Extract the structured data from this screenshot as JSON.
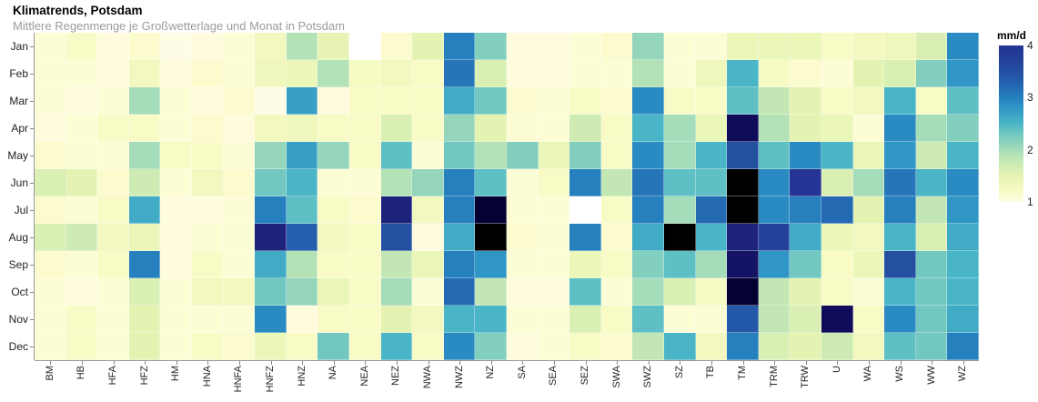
{
  "header": {
    "title": "Klimatrends, Potsdam",
    "subtitle": "Mittlere Regenmenge je Großwetterlage und Monat in Potsdam"
  },
  "legend": {
    "title": "mm/d",
    "ticks": [
      4,
      3,
      2,
      1
    ],
    "min": 1,
    "max": 4
  },
  "colors": {
    "missing": "#ffffff",
    "axis": "#999999",
    "tick": "#888888",
    "subtitle_text": "#9b9b9b",
    "label_text": "#222222",
    "colormap_anchors": [
      [
        1.0,
        "#fffce5"
      ],
      [
        1.2,
        "#f9fbc6"
      ],
      [
        1.5,
        "#e4f3b2"
      ],
      [
        1.8,
        "#c3e7b4"
      ],
      [
        2.0,
        "#a5dcb9"
      ],
      [
        2.3,
        "#72c8c1"
      ],
      [
        2.5,
        "#4ab5c6"
      ],
      [
        2.8,
        "#2f96c6"
      ],
      [
        3.0,
        "#2580bd"
      ],
      [
        3.3,
        "#245fae"
      ],
      [
        3.5,
        "#2450a2"
      ],
      [
        3.8,
        "#223c96"
      ],
      [
        4.0,
        "#253494"
      ],
      [
        4.15,
        "#191a6e"
      ],
      [
        4.3,
        "#0c054e"
      ],
      [
        4.45,
        "#050233"
      ],
      [
        4.7,
        "#000000"
      ]
    ]
  },
  "chart_data": {
    "type": "heatmap",
    "title": "Klimatrends, Potsdam",
    "subtitle": "Mittlere Regenmenge je Großwetterlage und Monat in Potsdam",
    "unit": "mm/d",
    "legend_range": [
      1,
      4
    ],
    "x_categories": [
      "BM",
      "HB",
      "HFA",
      "HFZ",
      "HM",
      "HNA",
      "HNFA",
      "HNFZ",
      "HNZ",
      "NA",
      "NEA",
      "NEZ",
      "NWA",
      "NWZ",
      "NZ",
      "SA",
      "SEA",
      "SEZ",
      "SWA",
      "SWZ",
      "SZ",
      "TB",
      "TM",
      "TRM",
      "TRW",
      "U",
      "WA",
      "WS",
      "WW",
      "WZ"
    ],
    "y_categories": [
      "Jan",
      "Feb",
      "Mar",
      "Apr",
      "May",
      "Jun",
      "Jul",
      "Aug",
      "Sep",
      "Oct",
      "Nov",
      "Dec"
    ],
    "values": [
      [
        1.1,
        1.2,
        1.05,
        1.15,
        1.0,
        1.05,
        1.1,
        1.3,
        1.9,
        1.45,
        null,
        1.15,
        1.5,
        3.0,
        2.2,
        1.05,
        1.05,
        1.1,
        1.15,
        2.1,
        1.1,
        1.1,
        1.4,
        1.4,
        1.4,
        1.2,
        1.3,
        1.35,
        1.6,
        2.9
      ],
      [
        1.1,
        1.1,
        1.05,
        1.3,
        1.05,
        1.15,
        1.1,
        1.35,
        1.4,
        1.9,
        1.25,
        1.3,
        1.2,
        3.1,
        1.6,
        1.05,
        1.05,
        1.1,
        1.1,
        1.9,
        1.1,
        1.35,
        2.5,
        1.25,
        1.15,
        1.1,
        1.5,
        1.6,
        2.2,
        2.8
      ],
      [
        1.1,
        1.05,
        1.1,
        2.0,
        1.1,
        1.05,
        1.15,
        1.0,
        2.7,
        1.05,
        1.2,
        1.2,
        1.2,
        2.6,
        2.3,
        1.15,
        1.1,
        1.2,
        1.15,
        2.9,
        1.2,
        1.2,
        2.4,
        1.8,
        1.5,
        1.2,
        1.3,
        2.5,
        1.2,
        2.4
      ],
      [
        1.05,
        1.1,
        1.2,
        1.2,
        1.1,
        1.15,
        1.05,
        1.3,
        1.35,
        1.2,
        1.2,
        1.6,
        1.2,
        2.1,
        1.5,
        1.1,
        1.1,
        1.7,
        1.2,
        2.5,
        2.0,
        1.4,
        4.25,
        1.9,
        1.5,
        1.4,
        1.1,
        2.9,
        2.0,
        2.2
      ],
      [
        1.15,
        1.1,
        1.1,
        2.0,
        1.2,
        1.2,
        1.1,
        2.1,
        2.7,
        2.1,
        1.2,
        2.4,
        1.1,
        2.3,
        1.9,
        2.2,
        1.4,
        2.2,
        1.2,
        2.9,
        2.0,
        2.5,
        3.5,
        2.4,
        2.9,
        2.5,
        1.4,
        2.8,
        1.7,
        2.5
      ],
      [
        1.6,
        1.5,
        1.15,
        1.7,
        1.1,
        1.3,
        1.15,
        2.3,
        2.5,
        1.1,
        1.1,
        1.9,
        2.1,
        3.0,
        2.4,
        1.1,
        1.2,
        3.0,
        1.8,
        3.1,
        2.4,
        2.4,
        4.7,
        2.9,
        4.0,
        1.6,
        2.0,
        3.1,
        2.5,
        2.9
      ],
      [
        1.15,
        1.1,
        1.2,
        2.6,
        1.05,
        1.05,
        1.1,
        3.0,
        2.4,
        1.2,
        1.15,
        4.1,
        1.3,
        3.0,
        4.45,
        1.1,
        1.1,
        null,
        1.2,
        3.0,
        2.0,
        3.2,
        4.7,
        2.9,
        3.0,
        3.2,
        1.5,
        3.0,
        1.8,
        2.8
      ],
      [
        1.6,
        1.7,
        1.3,
        1.4,
        1.05,
        1.1,
        1.1,
        4.1,
        3.3,
        1.3,
        1.2,
        3.5,
        1.05,
        2.6,
        4.7,
        1.15,
        1.1,
        3.0,
        1.15,
        2.6,
        4.7,
        2.5,
        4.1,
        3.7,
        2.6,
        1.4,
        1.3,
        2.5,
        1.6,
        2.6
      ],
      [
        1.15,
        1.1,
        1.2,
        3.0,
        1.05,
        1.2,
        1.1,
        2.6,
        1.9,
        1.2,
        1.2,
        1.8,
        1.4,
        3.0,
        2.8,
        1.1,
        1.1,
        1.4,
        1.2,
        2.2,
        2.4,
        2.0,
        4.2,
        2.8,
        2.3,
        1.2,
        1.4,
        3.5,
        2.3,
        2.5
      ],
      [
        1.1,
        1.05,
        1.1,
        1.6,
        1.1,
        1.3,
        1.3,
        2.3,
        2.1,
        1.4,
        1.2,
        2.0,
        1.1,
        3.2,
        1.8,
        1.05,
        1.05,
        2.4,
        1.1,
        2.0,
        1.6,
        1.25,
        4.45,
        1.8,
        1.5,
        1.2,
        1.1,
        2.5,
        2.3,
        2.5
      ],
      [
        1.1,
        1.2,
        1.1,
        1.5,
        1.1,
        1.1,
        1.1,
        2.9,
        1.05,
        1.2,
        1.2,
        1.5,
        1.3,
        2.5,
        2.5,
        1.1,
        1.1,
        1.6,
        1.2,
        2.4,
        1.1,
        1.1,
        3.4,
        1.8,
        1.6,
        4.25,
        1.2,
        2.9,
        2.3,
        2.6
      ],
      [
        1.1,
        1.2,
        1.1,
        1.5,
        1.1,
        1.2,
        1.15,
        1.4,
        1.2,
        2.3,
        1.2,
        2.5,
        1.2,
        2.9,
        2.2,
        1.05,
        1.1,
        1.2,
        1.15,
        1.8,
        2.5,
        1.3,
        3.0,
        1.6,
        1.5,
        1.7,
        1.3,
        2.4,
        2.3,
        3.0
      ]
    ]
  }
}
